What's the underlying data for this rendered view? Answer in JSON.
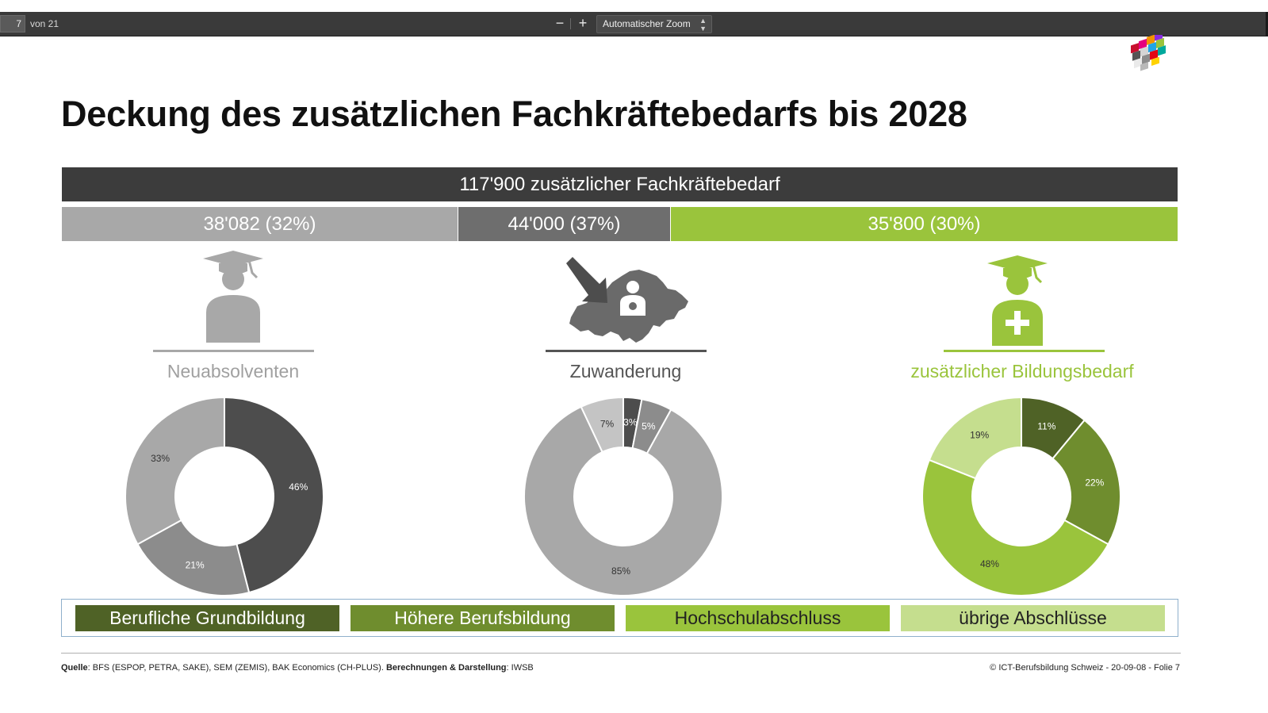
{
  "toolbar": {
    "page_number": "7",
    "page_total": "von 21",
    "zoom_out_label": "−",
    "zoom_in_label": "+",
    "zoom_value": "Automatischer Zoom"
  },
  "slide": {
    "title": "Deckung des zusätzlichen Fachkräftebedarfs bis 2028",
    "total_bar": "117'900 zusätzlicher Fachkräftebedarf",
    "segments": [
      {
        "label": "38'082 (32%)",
        "color": "#a8a8a8"
      },
      {
        "label": "44'000 (37%)",
        "color": "#6e6e6e"
      },
      {
        "label": "35'800 (30%)",
        "color": "#9ac43c"
      }
    ],
    "columns": [
      {
        "label": "Neuabsolventen",
        "color": "#a8a8a8"
      },
      {
        "label": "Zuwanderung",
        "color": "#606060"
      },
      {
        "label": "zusätzlicher Bildungsbedarf",
        "color": "#9ac43c"
      }
    ],
    "legend": [
      {
        "label": "Berufliche Grundbildung",
        "color": "#4f6226"
      },
      {
        "label": "Höhere Berufsbildung",
        "color": "#6f8d2e"
      },
      {
        "label": "Hochschulabschluss",
        "color": "#9ac43c"
      },
      {
        "label": "übrige Abschlüsse",
        "color": "#c5de8e"
      }
    ],
    "footer": {
      "source_key": "Quelle",
      "source_text": ": BFS (ESPOP, PETRA, SAKE), SEM (ZEMIS), BAK Economics (CH-PLUS). ",
      "calc_key": "Berechnungen & Darstellung",
      "calc_text": ": IWSB",
      "right": "© ICT-Berufsbildung Schweiz - 20-09-08 - Folie 7"
    }
  },
  "chart_data": [
    {
      "type": "pie",
      "donut": true,
      "title": "Neuabsolventen",
      "categories": [
        "Berufliche Grundbildung",
        "Höhere Berufsbildung",
        "Hochschulabschluss",
        "übrige Abschlüsse"
      ],
      "values": [
        46,
        21,
        null,
        33
      ],
      "slices": [
        {
          "value": 46,
          "label": "46%",
          "color": "#4d4d4d"
        },
        {
          "value": 21,
          "label": "21%",
          "color": "#8c8c8c"
        },
        {
          "value": 33,
          "label": "33%",
          "color": "#a8a8a8"
        }
      ]
    },
    {
      "type": "pie",
      "donut": true,
      "title": "Zuwanderung",
      "slices": [
        {
          "value": 3,
          "label": "3%",
          "color": "#4d4d4d"
        },
        {
          "value": 5,
          "label": "5%",
          "color": "#8c8c8c"
        },
        {
          "value": 85,
          "label": "85%",
          "color": "#a8a8a8"
        },
        {
          "value": 7,
          "label": "7%",
          "color": "#c4c4c4"
        }
      ]
    },
    {
      "type": "pie",
      "donut": true,
      "title": "zusätzlicher Bildungsbedarf",
      "slices": [
        {
          "value": 11,
          "label": "11%",
          "color": "#4f6226"
        },
        {
          "value": 22,
          "label": "22%",
          "color": "#6f8d2e"
        },
        {
          "value": 48,
          "label": "48%",
          "color": "#9ac43c"
        },
        {
          "value": 19,
          "label": "19%",
          "color": "#c5de8e"
        }
      ]
    }
  ]
}
